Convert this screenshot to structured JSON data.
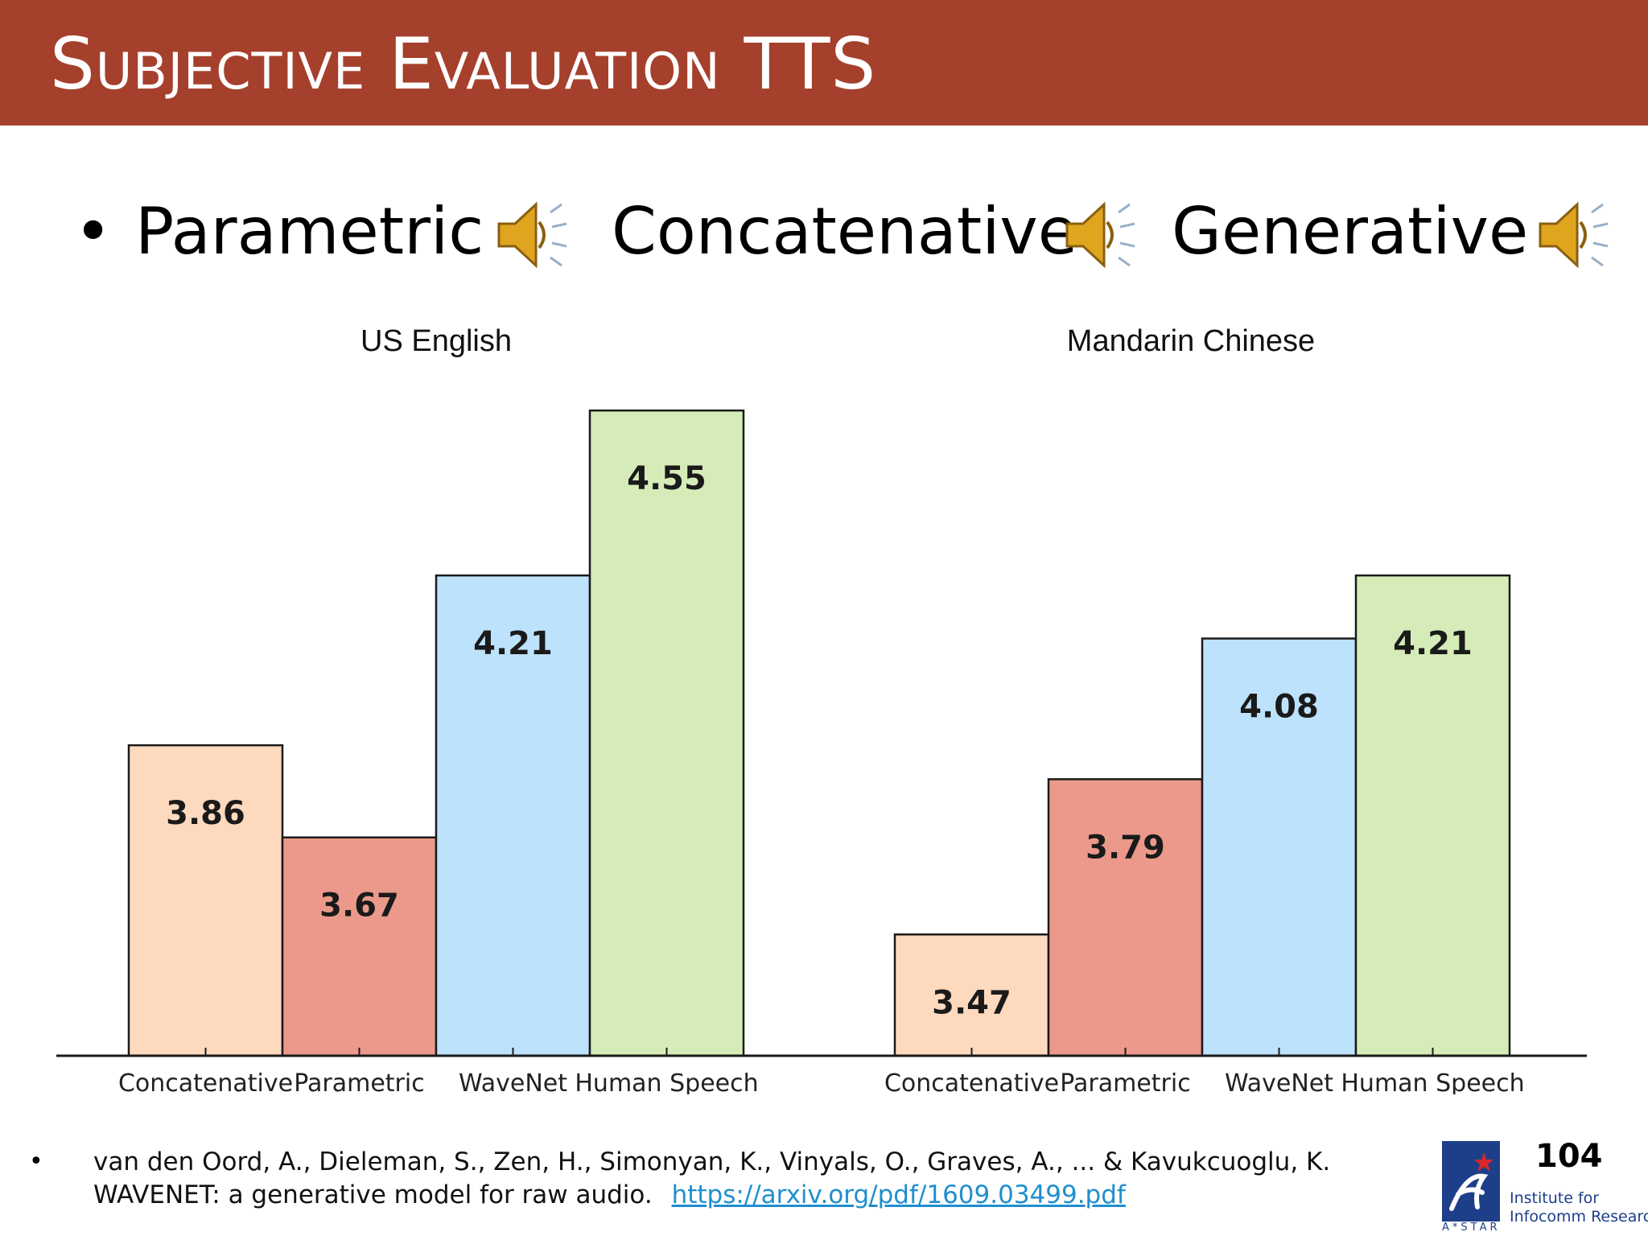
{
  "slide": {
    "title": "Subjective Evaluation TTS",
    "bullet_symbol": "•",
    "audio_items": [
      {
        "label": "Parametric",
        "icon": "speaker-icon"
      },
      {
        "label": "Concatenative",
        "icon": "speaker-icon"
      },
      {
        "label": "Generative",
        "icon": "speaker-icon"
      }
    ],
    "page_number": "104"
  },
  "footer": {
    "bullet": "•",
    "reference_line1": "van den Oord, A., Dieleman, S., Zen, H., Simonyan, K., Vinyals, O., Graves, A., ... & Kavukcuoglu, K.",
    "reference_line2": "WAVENET: a generative model for raw audio.",
    "link": "https://arxiv.org/pdf/1609.03499.pdf",
    "logo_text_line1": "Institute for",
    "logo_text_line2": "Infocomm Research",
    "logo_sub": "A*STAR"
  },
  "colors": {
    "header": "#a5402d",
    "concatenative": "#fdd9be",
    "parametric": "#eb998a",
    "wavenet": "#bde2fb",
    "human_speech": "#d5ecb8"
  },
  "chart_data": [
    {
      "type": "bar",
      "title": "US English",
      "categories": [
        "Concatenative",
        "Parametric",
        "WaveNet",
        "Human Speech"
      ],
      "values": [
        3.86,
        3.67,
        4.21,
        4.55
      ],
      "data_labels": [
        "3.86",
        "3.67",
        "4.21",
        "4.55"
      ],
      "ylim": [
        3.22,
        4.6
      ],
      "grid": false,
      "legend": "none"
    },
    {
      "type": "bar",
      "title": "Mandarin Chinese",
      "categories": [
        "Concatenative",
        "Parametric",
        "WaveNet",
        "Human Speech"
      ],
      "values": [
        3.47,
        3.79,
        4.08,
        4.21
      ],
      "data_labels": [
        "3.47",
        "3.79",
        "4.08",
        "4.21"
      ],
      "ylim": [
        3.22,
        4.6
      ],
      "grid": false,
      "legend": "none"
    }
  ]
}
